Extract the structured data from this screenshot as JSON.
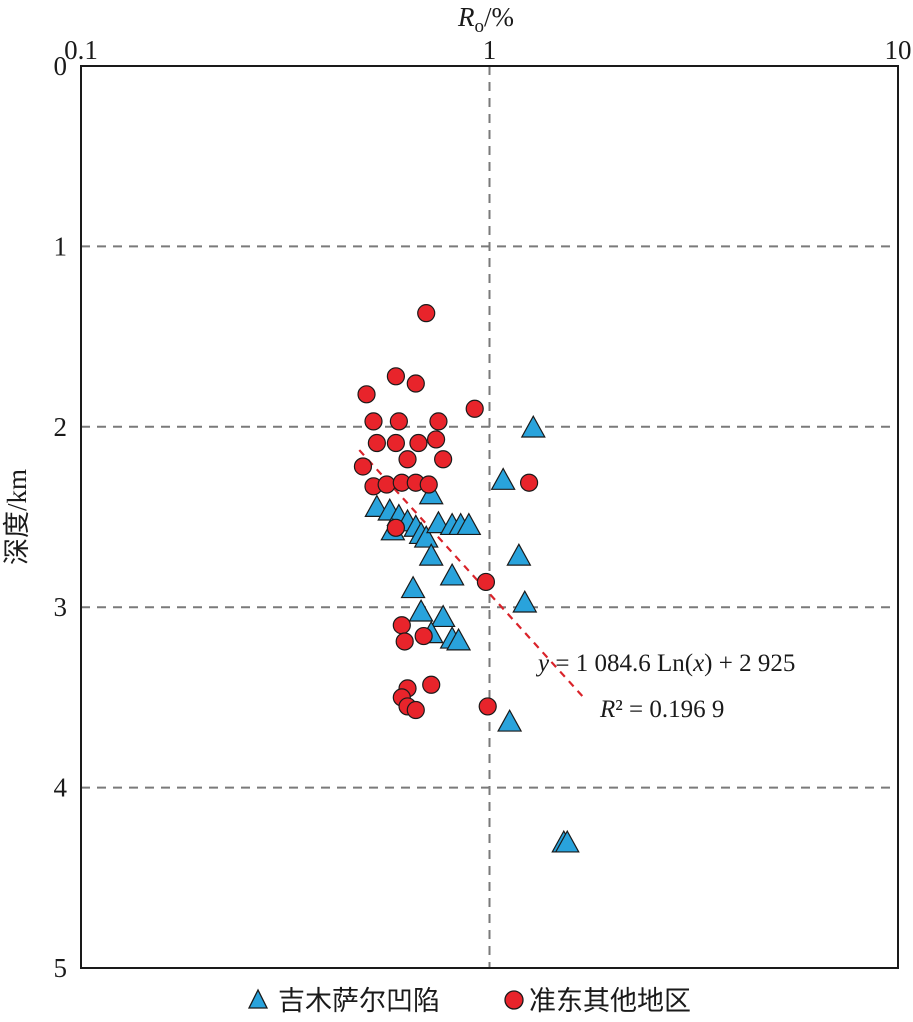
{
  "chart_data": {
    "type": "scatter",
    "xlabel": "Ro/%",
    "xlabel_main": "R",
    "xlabel_sub": "o",
    "xlabel_unit": "/%",
    "ylabel": "深度/km",
    "x_scale": "log",
    "x_ticks": [
      0.1,
      1,
      10
    ],
    "x_tick_labels": [
      "0.1",
      "1",
      "10"
    ],
    "xlim": [
      0.1,
      10
    ],
    "ylim": [
      0,
      5
    ],
    "y_inverted": true,
    "y_ticks": [
      0,
      1,
      2,
      3,
      4,
      5
    ],
    "y_tick_labels": [
      "0",
      "1",
      "2",
      "3",
      "4",
      "5"
    ],
    "x_axis_position": "top",
    "grid": true,
    "grid_style": "dashed",
    "legend_placement": "bottom",
    "series": [
      {
        "name": "吉木萨尔凹陷",
        "marker": "triangle",
        "color": "#29a3dc",
        "points": [
          [
            1.28,
            2.01
          ],
          [
            1.08,
            2.3
          ],
          [
            0.72,
            2.38
          ],
          [
            0.53,
            2.45
          ],
          [
            0.57,
            2.47
          ],
          [
            0.6,
            2.5
          ],
          [
            0.63,
            2.53
          ],
          [
            0.58,
            2.58
          ],
          [
            0.66,
            2.56
          ],
          [
            0.68,
            2.6
          ],
          [
            0.7,
            2.62
          ],
          [
            0.75,
            2.54
          ],
          [
            0.81,
            2.55
          ],
          [
            0.85,
            2.55
          ],
          [
            0.89,
            2.55
          ],
          [
            0.72,
            2.72
          ],
          [
            1.18,
            2.72
          ],
          [
            0.81,
            2.83
          ],
          [
            0.65,
            2.9
          ],
          [
            1.22,
            2.98
          ],
          [
            0.68,
            3.03
          ],
          [
            0.77,
            3.06
          ],
          [
            0.72,
            3.15
          ],
          [
            0.81,
            3.18
          ],
          [
            0.84,
            3.19
          ],
          [
            1.12,
            3.64
          ],
          [
            1.52,
            4.31
          ],
          [
            1.55,
            4.31
          ]
        ]
      },
      {
        "name": "准东其他地区",
        "marker": "circle",
        "color": "#e8242b",
        "points": [
          [
            0.7,
            1.37
          ],
          [
            0.59,
            1.72
          ],
          [
            0.66,
            1.76
          ],
          [
            0.5,
            1.82
          ],
          [
            0.92,
            1.9
          ],
          [
            0.52,
            1.97
          ],
          [
            0.6,
            1.97
          ],
          [
            0.75,
            1.97
          ],
          [
            0.53,
            2.09
          ],
          [
            0.59,
            2.09
          ],
          [
            0.67,
            2.09
          ],
          [
            0.74,
            2.07
          ],
          [
            0.63,
            2.18
          ],
          [
            0.77,
            2.18
          ],
          [
            0.49,
            2.22
          ],
          [
            1.25,
            2.31
          ],
          [
            0.52,
            2.33
          ],
          [
            0.56,
            2.32
          ],
          [
            0.61,
            2.31
          ],
          [
            0.66,
            2.31
          ],
          [
            0.71,
            2.32
          ],
          [
            0.59,
            2.56
          ],
          [
            0.98,
            2.86
          ],
          [
            0.61,
            3.1
          ],
          [
            0.62,
            3.19
          ],
          [
            0.69,
            3.16
          ],
          [
            0.72,
            3.43
          ],
          [
            0.63,
            3.45
          ],
          [
            0.61,
            3.5
          ],
          [
            0.63,
            3.55
          ],
          [
            0.66,
            3.57
          ],
          [
            0.99,
            3.55
          ]
        ]
      }
    ],
    "trendline": {
      "type": "log",
      "color": "#d9232a",
      "style": "dashed",
      "x_range": [
        0.48,
        1.7
      ],
      "equation_lhs": "y",
      "equation_rhs": " = 1 084.6 Ln(",
      "equation_var": "x",
      "equation_tail": ") + 2 925",
      "r2_lhs": "R",
      "r2_rhs": "² = 0.196 9"
    }
  }
}
